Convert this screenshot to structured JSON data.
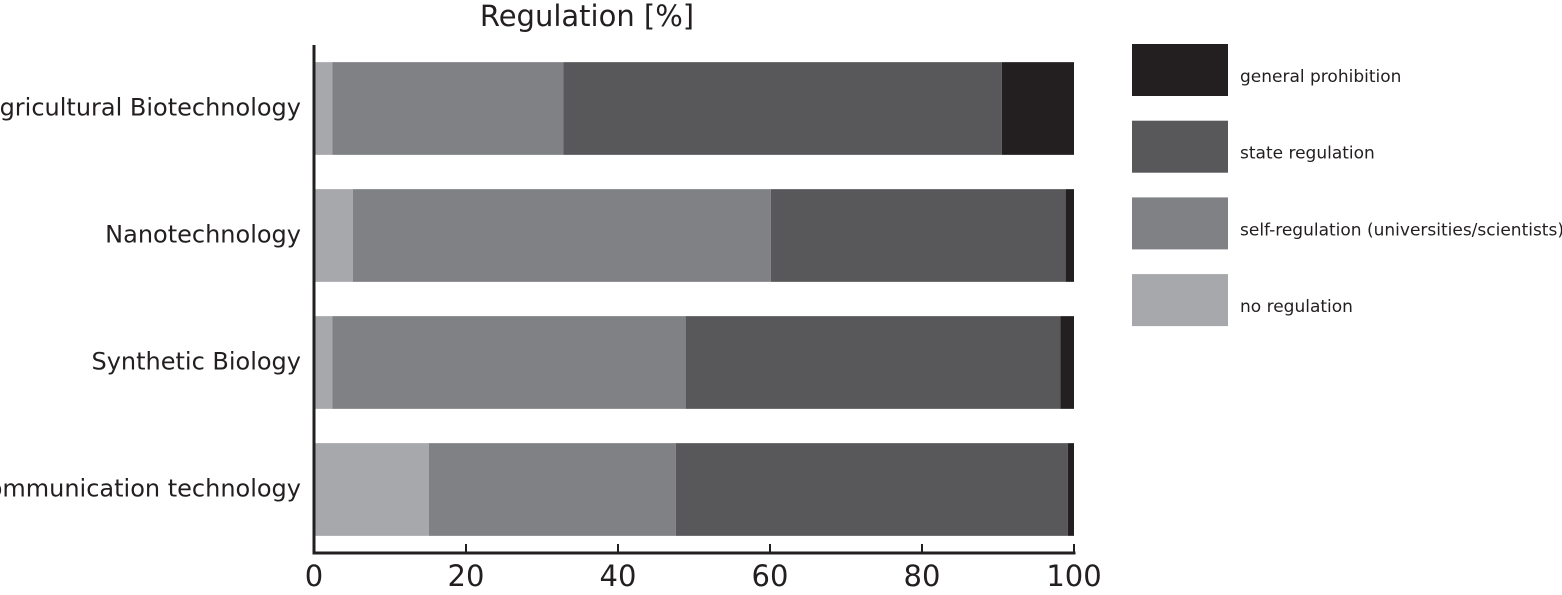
{
  "chart_data": {
    "type": "stacked-barh",
    "title": "Regulation [%]",
    "categories": [
      "Agricultural Biotechnology",
      "Nanotechnology",
      "Synthetic Biology",
      "Communication technology"
    ],
    "series": [
      {
        "name": "no regulation",
        "color": "#a7a8ab",
        "values": [
          2.4,
          5.1,
          2.4,
          15.1
        ]
      },
      {
        "name": "self-regulation (universities/scientists)",
        "color": "#808184",
        "values": [
          30.4,
          55.0,
          46.5,
          32.5
        ]
      },
      {
        "name": "state regulation",
        "color": "#58585a",
        "values": [
          57.7,
          38.8,
          49.3,
          51.6
        ]
      },
      {
        "name": "general prohibition",
        "color": "#231f20",
        "values": [
          9.5,
          1.1,
          1.8,
          0.8
        ]
      }
    ],
    "xlim": [
      0,
      100
    ],
    "xticks": [
      0,
      20,
      40,
      60,
      80,
      100
    ]
  }
}
